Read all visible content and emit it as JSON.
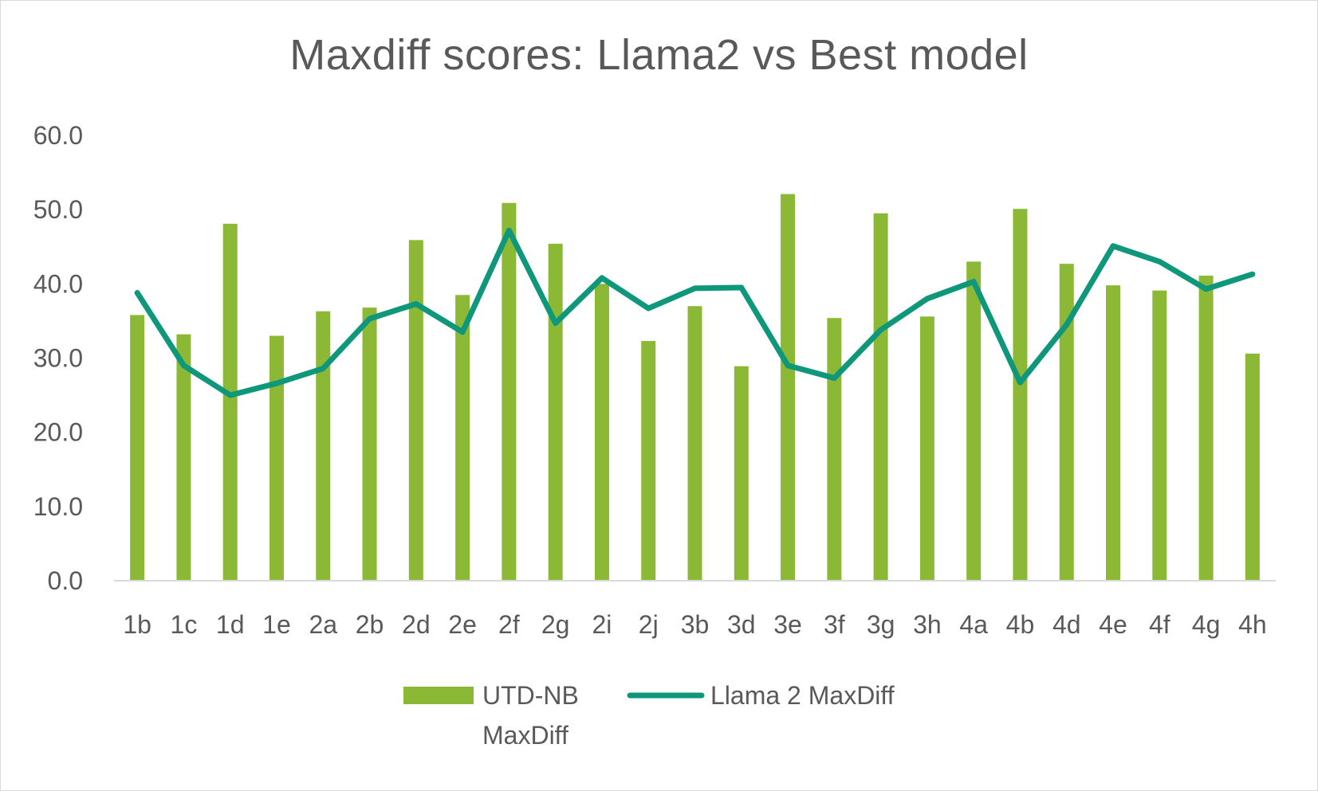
{
  "chart_data": {
    "type": "bar",
    "title": "Maxdiff scores: Llama2 vs Best model",
    "xlabel": "",
    "ylabel": "",
    "ylim": [
      0,
      60
    ],
    "yticks": [
      "0.0",
      "10.0",
      "20.0",
      "30.0",
      "40.0",
      "50.0",
      "60.0"
    ],
    "grid": false,
    "legend_position": "bottom",
    "categories": [
      "1b",
      "1c",
      "1d",
      "1e",
      "2a",
      "2b",
      "2d",
      "2e",
      "2f",
      "2g",
      "2i",
      "2j",
      "3b",
      "3d",
      "3e",
      "3f",
      "3g",
      "3h",
      "4a",
      "4b",
      "4d",
      "4e",
      "4f",
      "4g",
      "4h"
    ],
    "series": [
      {
        "name": "UTD-NB MaxDiff",
        "name_lines": [
          "UTD-NB",
          "MaxDiff"
        ],
        "type": "bar",
        "color": "#8cb935",
        "values": [
          35.8,
          33.2,
          48.1,
          33.0,
          36.3,
          36.8,
          45.9,
          38.5,
          50.9,
          45.4,
          40.0,
          32.3,
          37.0,
          28.9,
          52.1,
          35.4,
          49.5,
          35.6,
          43.0,
          50.1,
          42.7,
          39.8,
          39.1,
          41.1,
          30.6
        ]
      },
      {
        "name": "Llama 2 MaxDiff",
        "type": "line",
        "color": "#0e977a",
        "values": [
          38.8,
          29.0,
          25.0,
          26.6,
          28.6,
          35.3,
          37.3,
          33.5,
          47.2,
          34.7,
          40.8,
          36.7,
          39.4,
          39.5,
          29.0,
          27.3,
          33.8,
          38.0,
          40.3,
          26.7,
          34.5,
          45.1,
          43.0,
          39.3,
          41.3
        ]
      }
    ]
  }
}
